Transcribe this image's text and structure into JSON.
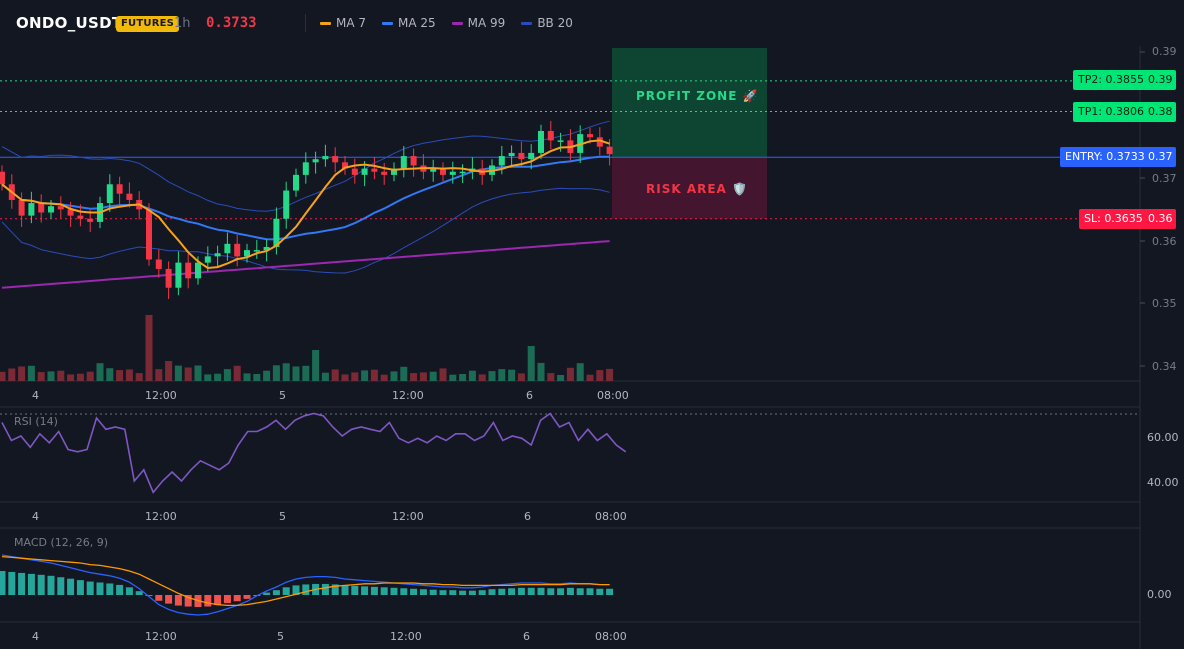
{
  "header": {
    "symbol": "ONDO_USDT",
    "badge": "FUTURES",
    "timeframe": "1h",
    "last_price": "0.3733"
  },
  "legend": [
    {
      "label": "MA 7",
      "color": "#f7a21b"
    },
    {
      "label": "MA 25",
      "color": "#3179f5"
    },
    {
      "label": "MA 99",
      "color": "#9c27b0"
    },
    {
      "label": "BB 20",
      "color": "#2a4cb8"
    }
  ],
  "colors": {
    "up": "#26d98a",
    "down": "#f23645",
    "background": "#131722",
    "tp": "#00e676",
    "sl": "#ff1744",
    "entry": "#2962ff"
  },
  "price_axis": {
    "labels": [
      "0.39",
      "0.38",
      "0.37",
      "0.36",
      "0.35",
      "0.34"
    ]
  },
  "time_axis": {
    "labels": [
      "4",
      "12:00",
      "5",
      "12:00",
      "6",
      "08:00"
    ]
  },
  "levels": {
    "tp2": {
      "label": "TP2: 0.3855",
      "axis": "0.39",
      "value": 0.3855
    },
    "tp1": {
      "label": "TP1: 0.3806",
      "axis": "0.38",
      "value": 0.3806
    },
    "entry": {
      "label": "ENTRY: 0.3733",
      "axis": "0.37",
      "value": 0.3733
    },
    "sl": {
      "label": "SL: 0.3635",
      "axis": "0.36",
      "value": 0.3635
    }
  },
  "zones": {
    "profit": "PROFIT ZONE 🚀",
    "risk": "RISK AREA 🛡️"
  },
  "rsi": {
    "label": "RSI (14)",
    "axis_labels": [
      "60.00",
      "40.00"
    ],
    "values": [
      66,
      58,
      60,
      55,
      61,
      57,
      62,
      54,
      53,
      54,
      68,
      63,
      64,
      63,
      40,
      45,
      35,
      40,
      44,
      40,
      45,
      49,
      47,
      45,
      48,
      56,
      62,
      62,
      64,
      67,
      63,
      67,
      69,
      70,
      69,
      64,
      60,
      63,
      64,
      63,
      62,
      66,
      59,
      57,
      59,
      57,
      60,
      58,
      61,
      61,
      58,
      60,
      66,
      58,
      60,
      59,
      56,
      67,
      70,
      64,
      66,
      58,
      63,
      58,
      61,
      56,
      53
    ]
  },
  "macd": {
    "label": "MACD (12, 26, 9)",
    "axis_labels": [
      "0.00"
    ],
    "macd_line": [
      0.005,
      0.0048,
      0.0046,
      0.0044,
      0.0042,
      0.004,
      0.0037,
      0.0034,
      0.0031,
      0.0028,
      0.0026,
      0.0024,
      0.0021,
      0.0016,
      0.0008,
      -0.0002,
      -0.0012,
      -0.0018,
      -0.0022,
      -0.0024,
      -0.0025,
      -0.0024,
      -0.0021,
      -0.0017,
      -0.0013,
      -0.0008,
      -0.0001,
      0.0005,
      0.001,
      0.0016,
      0.002,
      0.0022,
      0.0023,
      0.0023,
      0.0022,
      0.002,
      0.0019,
      0.0018,
      0.0017,
      0.0016,
      0.0015,
      0.0014,
      0.0013,
      0.0012,
      0.0011,
      0.001,
      0.001,
      0.0009,
      0.0009,
      0.001,
      0.0012,
      0.0013,
      0.0014,
      0.0015,
      0.0015,
      0.0015,
      0.0014,
      0.0014,
      0.0015,
      0.0014,
      0.0014,
      0.0013,
      0.0013
    ],
    "signal_line": [
      0.0048,
      0.0047,
      0.0046,
      0.0045,
      0.0044,
      0.0043,
      0.0042,
      0.0041,
      0.004,
      0.0038,
      0.0037,
      0.0035,
      0.0033,
      0.003,
      0.0026,
      0.002,
      0.0014,
      0.0008,
      0.0002,
      -0.0003,
      -0.0007,
      -0.001,
      -0.0012,
      -0.0013,
      -0.0013,
      -0.0012,
      -0.001,
      -0.0008,
      -0.0005,
      -0.0002,
      0.0001,
      0.0004,
      0.0007,
      0.0009,
      0.0011,
      0.0012,
      0.0013,
      0.0014,
      0.0014,
      0.0015,
      0.0015,
      0.0015,
      0.0015,
      0.0014,
      0.0014,
      0.0013,
      0.0013,
      0.0012,
      0.0012,
      0.0012,
      0.0012,
      0.0012,
      0.0012,
      0.0013,
      0.0013,
      0.0013,
      0.0013,
      0.0013,
      0.0014,
      0.0014,
      0.0014,
      0.0013,
      0.0013
    ]
  }
}
